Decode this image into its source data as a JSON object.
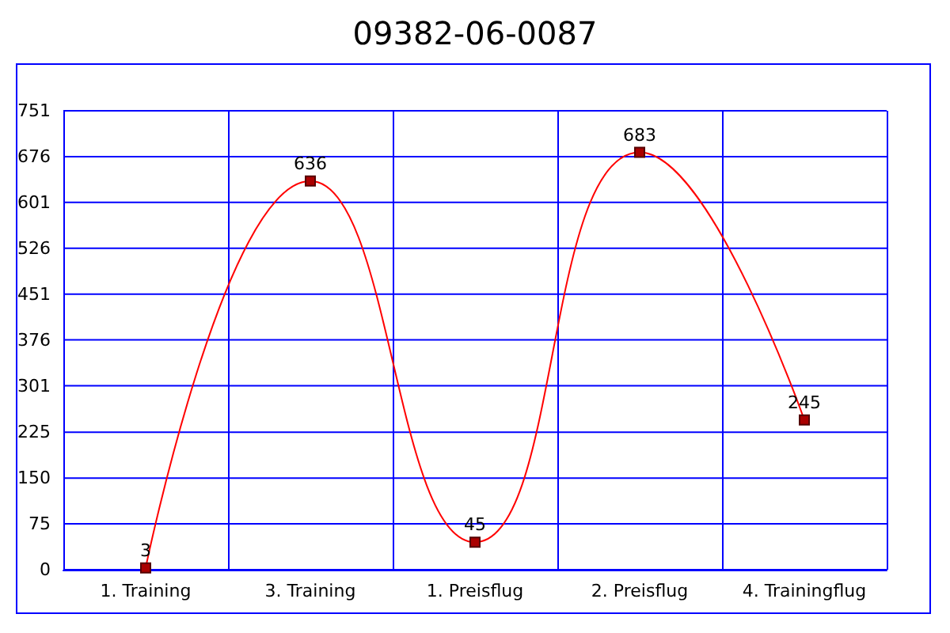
{
  "chart_data": {
    "type": "line",
    "title": "09382-06-0087",
    "categories": [
      "1. Training",
      "3. Training",
      "1. Preisflug",
      "2. Preisflug",
      "4. Trainingflug"
    ],
    "series": [
      {
        "color": "#ff0000",
        "values": [
          3,
          636,
          45,
          683,
          245
        ]
      }
    ],
    "ylim": [
      0,
      751
    ],
    "yticks": [
      0,
      75,
      150,
      225,
      301,
      376,
      451,
      526,
      601,
      676,
      751
    ],
    "grid": true,
    "marker": "square",
    "data_labels": true
  }
}
